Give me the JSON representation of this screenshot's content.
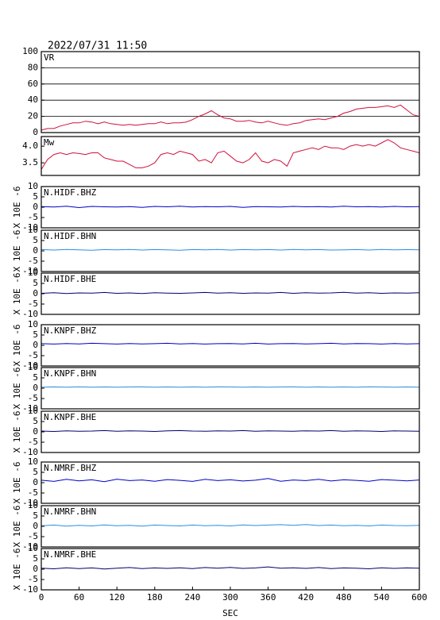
{
  "title": "2022/07/31  11:50",
  "chart_data": [
    {
      "type": "line",
      "panel_label": "VR",
      "color": "#d0103a",
      "xlim": [
        0,
        600
      ],
      "ylim": [
        0,
        100
      ],
      "yticks": [
        0,
        20,
        40,
        60,
        80,
        100
      ],
      "grid": true,
      "x": [
        0,
        10,
        20,
        30,
        40,
        50,
        60,
        70,
        80,
        90,
        100,
        110,
        120,
        130,
        140,
        150,
        160,
        170,
        180,
        190,
        200,
        210,
        220,
        230,
        240,
        250,
        260,
        270,
        280,
        290,
        300,
        310,
        320,
        330,
        340,
        350,
        360,
        370,
        380,
        390,
        400,
        410,
        420,
        430,
        440,
        450,
        460,
        470,
        480,
        490,
        500,
        510,
        520,
        530,
        540,
        550,
        560,
        570,
        580,
        590,
        600
      ],
      "values": [
        3,
        5,
        5,
        8,
        10,
        12,
        12,
        14,
        13,
        11,
        13,
        11,
        10,
        9,
        10,
        9,
        10,
        11,
        11,
        13,
        11,
        12,
        12,
        13,
        16,
        20,
        23,
        27,
        22,
        18,
        17,
        14,
        14,
        15,
        13,
        12,
        14,
        12,
        10,
        9,
        11,
        12,
        15,
        16,
        17,
        16,
        18,
        20,
        24,
        26,
        29,
        30,
        31,
        31,
        32,
        33,
        31,
        34,
        28,
        22,
        20
      ]
    },
    {
      "type": "line",
      "panel_label": "Mw",
      "color": "#d0103a",
      "xlim": [
        0,
        600
      ],
      "ylim": [
        3.12,
        4.29
      ],
      "yticks": [
        3.5,
        {
          "value": 4,
          "label": "4.0"
        }
      ],
      "grid": false,
      "x": [
        0,
        10,
        20,
        30,
        40,
        50,
        60,
        70,
        80,
        90,
        100,
        110,
        120,
        130,
        140,
        150,
        160,
        170,
        180,
        190,
        200,
        210,
        220,
        230,
        240,
        250,
        260,
        270,
        280,
        290,
        300,
        310,
        320,
        330,
        340,
        350,
        360,
        370,
        380,
        390,
        400,
        410,
        420,
        430,
        440,
        450,
        460,
        470,
        480,
        490,
        500,
        510,
        520,
        530,
        540,
        550,
        560,
        570,
        580,
        590,
        600
      ],
      "values": [
        3.3,
        3.6,
        3.75,
        3.8,
        3.75,
        3.8,
        3.78,
        3.75,
        3.8,
        3.8,
        3.65,
        3.6,
        3.55,
        3.55,
        3.45,
        3.35,
        3.35,
        3.4,
        3.5,
        3.75,
        3.8,
        3.75,
        3.85,
        3.8,
        3.75,
        3.55,
        3.6,
        3.5,
        3.8,
        3.85,
        3.7,
        3.55,
        3.5,
        3.6,
        3.8,
        3.55,
        3.5,
        3.6,
        3.55,
        3.4,
        3.8,
        3.85,
        3.9,
        3.95,
        3.9,
        4.0,
        3.95,
        3.95,
        3.9,
        4.0,
        4.05,
        4.0,
        4.05,
        4.0,
        4.1,
        4.2,
        4.1,
        3.95,
        3.9,
        3.85,
        3.8
      ]
    },
    {
      "type": "traces",
      "xlim": [
        0,
        600
      ],
      "xticks": [
        0,
        60,
        120,
        180,
        240,
        300,
        360,
        420,
        480,
        540,
        600
      ],
      "xlabel": "SEC",
      "ylim": [
        -10,
        10
      ],
      "yticks": [
        -10,
        -5,
        0,
        5,
        10
      ],
      "ylabel": "X 10E -6",
      "x": [
        0,
        20,
        40,
        60,
        80,
        100,
        120,
        140,
        160,
        180,
        200,
        220,
        240,
        260,
        280,
        300,
        320,
        340,
        360,
        380,
        400,
        420,
        440,
        460,
        480,
        500,
        520,
        540,
        560,
        580,
        600
      ],
      "series": [
        {
          "name": "N.HIDF.BHZ",
          "color": "#0000c8",
          "values": [
            0.3,
            0.1,
            0.5,
            -0.2,
            0.4,
            0.2,
            0.1,
            0.3,
            -0.1,
            0.4,
            0.2,
            0.5,
            0.1,
            0.3,
            0.2,
            0.4,
            -0.1,
            0.3,
            0.2,
            0.1,
            0.4,
            0.2,
            0.3,
            0.1,
            0.5,
            0.2,
            0.3,
            0.1,
            0.4,
            0.2,
            0.3
          ]
        },
        {
          "name": "N.HIDF.BHN",
          "color": "#2a8fe0",
          "values": [
            0.6,
            0.4,
            0.7,
            0.5,
            0.3,
            0.6,
            0.5,
            0.7,
            0.4,
            0.6,
            0.5,
            0.3,
            0.6,
            0.5,
            0.7,
            0.4,
            0.6,
            0.5,
            0.6,
            0.4,
            0.7,
            0.5,
            0.6,
            0.4,
            0.5,
            0.6,
            0.4,
            0.7,
            0.5,
            0.6,
            0.5
          ]
        },
        {
          "name": "N.HIDF.BHE",
          "color": "#000070",
          "values": [
            0.2,
            0.5,
            0.1,
            0.4,
            0.3,
            0.6,
            0.2,
            0.4,
            0.1,
            0.5,
            0.3,
            0.2,
            0.4,
            0.6,
            0.3,
            0.5,
            0.2,
            0.4,
            0.3,
            0.6,
            0.2,
            0.5,
            0.3,
            0.4,
            0.7,
            0.3,
            0.5,
            0.2,
            0.4,
            0.3,
            0.5
          ]
        },
        {
          "name": "N.KNPF.BHZ",
          "color": "#0000c8",
          "values": [
            0.8,
            0.6,
            0.9,
            0.7,
            1.0,
            0.8,
            0.6,
            0.9,
            0.7,
            0.8,
            1.0,
            0.7,
            0.9,
            0.6,
            0.8,
            0.9,
            0.7,
            1.0,
            0.6,
            0.8,
            0.9,
            0.7,
            0.8,
            1.0,
            0.7,
            0.9,
            0.8,
            0.6,
            0.9,
            0.7,
            0.8
          ]
        },
        {
          "name": "N.KNPF.BHN",
          "color": "#2a8fe0",
          "values": [
            0.5,
            0.6,
            0.5,
            0.7,
            0.5,
            0.6,
            0.5,
            0.6,
            0.7,
            0.5,
            0.6,
            0.5,
            0.6,
            0.5,
            0.7,
            0.6,
            0.5,
            0.6,
            0.5,
            0.6,
            0.7,
            0.5,
            0.6,
            0.5,
            0.6,
            0.5,
            0.7,
            0.6,
            0.5,
            0.6,
            0.5
          ]
        },
        {
          "name": "N.KNPF.BHE",
          "color": "#000070",
          "values": [
            0.4,
            0.2,
            0.5,
            0.3,
            0.4,
            0.6,
            0.3,
            0.5,
            0.4,
            0.2,
            0.5,
            0.6,
            0.4,
            0.3,
            0.5,
            0.4,
            0.6,
            0.3,
            0.5,
            0.4,
            0.3,
            0.5,
            0.4,
            0.6,
            0.3,
            0.5,
            0.4,
            0.2,
            0.5,
            0.4,
            0.3
          ]
        },
        {
          "name": "N.NMRF.BHZ",
          "color": "#0000c8",
          "values": [
            1.2,
            0.6,
            1.6,
            0.9,
            1.4,
            0.5,
            1.7,
            1.0,
            1.3,
            0.7,
            1.5,
            1.1,
            0.6,
            1.6,
            1.0,
            1.4,
            0.8,
            1.2,
            2.0,
            0.7,
            1.3,
            1.0,
            1.6,
            0.8,
            1.4,
            1.1,
            0.7,
            1.5,
            1.2,
            0.9,
            1.3
          ]
        },
        {
          "name": "N.NMRF.BHN",
          "color": "#2a8fe0",
          "values": [
            0.3,
            0.6,
            0.1,
            0.5,
            0.2,
            0.7,
            0.3,
            0.5,
            0.1,
            0.6,
            0.4,
            0.2,
            0.6,
            0.3,
            0.5,
            0.2,
            0.7,
            0.4,
            0.6,
            0.8,
            0.5,
            0.9,
            0.4,
            0.6,
            0.3,
            0.5,
            0.2,
            0.6,
            0.4,
            0.3,
            0.5
          ]
        },
        {
          "name": "N.NMRF.BHE",
          "color": "#000070",
          "values": [
            0.5,
            0.2,
            0.7,
            0.3,
            0.6,
            0.1,
            0.5,
            0.8,
            0.3,
            0.6,
            0.4,
            0.7,
            0.3,
            0.8,
            0.5,
            0.9,
            0.4,
            0.6,
            1.1,
            0.5,
            0.7,
            0.4,
            0.8,
            0.3,
            0.6,
            0.5,
            0.2,
            0.7,
            0.4,
            0.6,
            0.5
          ]
        }
      ]
    }
  ]
}
